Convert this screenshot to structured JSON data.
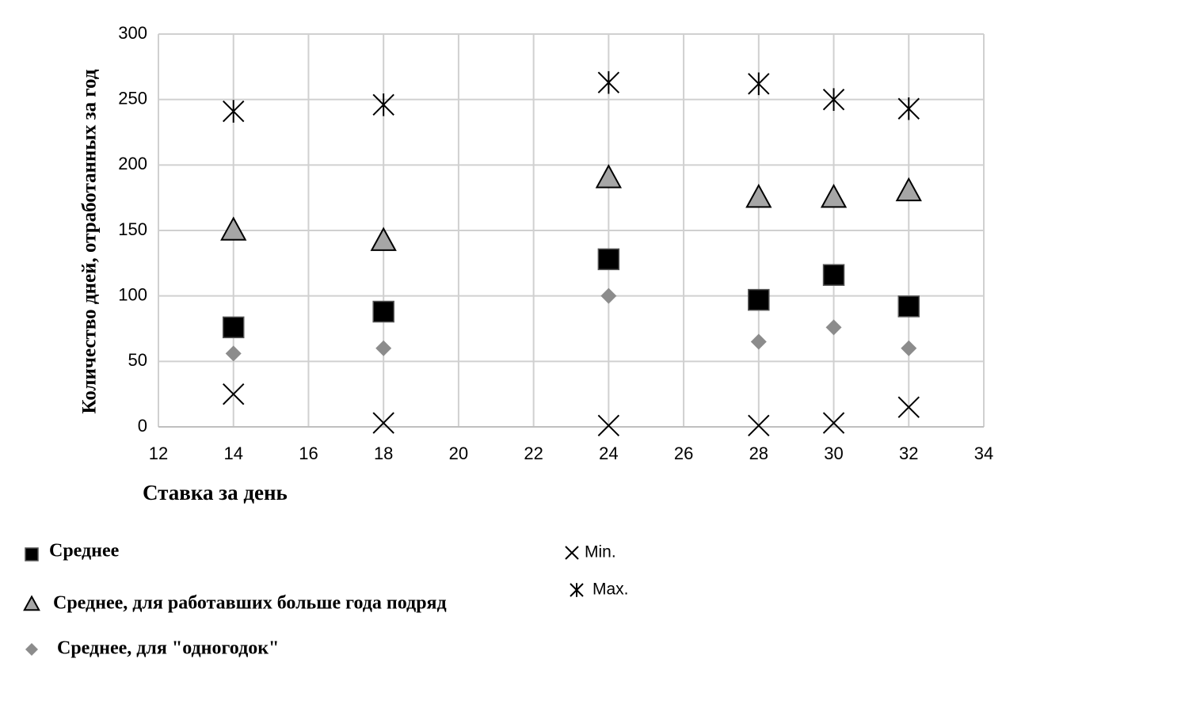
{
  "chart_data": {
    "type": "scatter",
    "x_label": "Ставка за день",
    "y_label": "Количество дней, отработанных за год",
    "x": [
      14,
      18,
      24,
      28,
      30,
      32
    ],
    "series": [
      {
        "name": "Среднее",
        "marker": "square",
        "color": "#000000",
        "values": [
          76,
          88,
          128,
          97,
          116,
          92
        ]
      },
      {
        "name": "Среднее, для работавших больше года подряд",
        "marker": "triangle",
        "color": "#a6a6a6",
        "values": [
          150,
          142,
          190,
          175,
          175,
          180
        ]
      },
      {
        "name": "Среднее, для \"одногодок\"",
        "marker": "diamond",
        "color": "#8c8c8c",
        "values": [
          56,
          60,
          100,
          65,
          76,
          60
        ]
      },
      {
        "name": "Min.",
        "marker": "x",
        "color": "#000000",
        "values": [
          25,
          3,
          1,
          1,
          3,
          15
        ]
      },
      {
        "name": "Max.",
        "marker": "asterisk",
        "color": "#000000",
        "values": [
          241,
          246,
          263,
          262,
          250,
          243
        ]
      }
    ],
    "xlim": [
      12,
      34
    ],
    "xticks": [
      12,
      14,
      16,
      18,
      20,
      22,
      24,
      26,
      28,
      30,
      32,
      34
    ],
    "ylim": [
      0,
      300
    ],
    "yticks": [
      0,
      50,
      100,
      150,
      200,
      250,
      300
    ],
    "grid": true
  }
}
